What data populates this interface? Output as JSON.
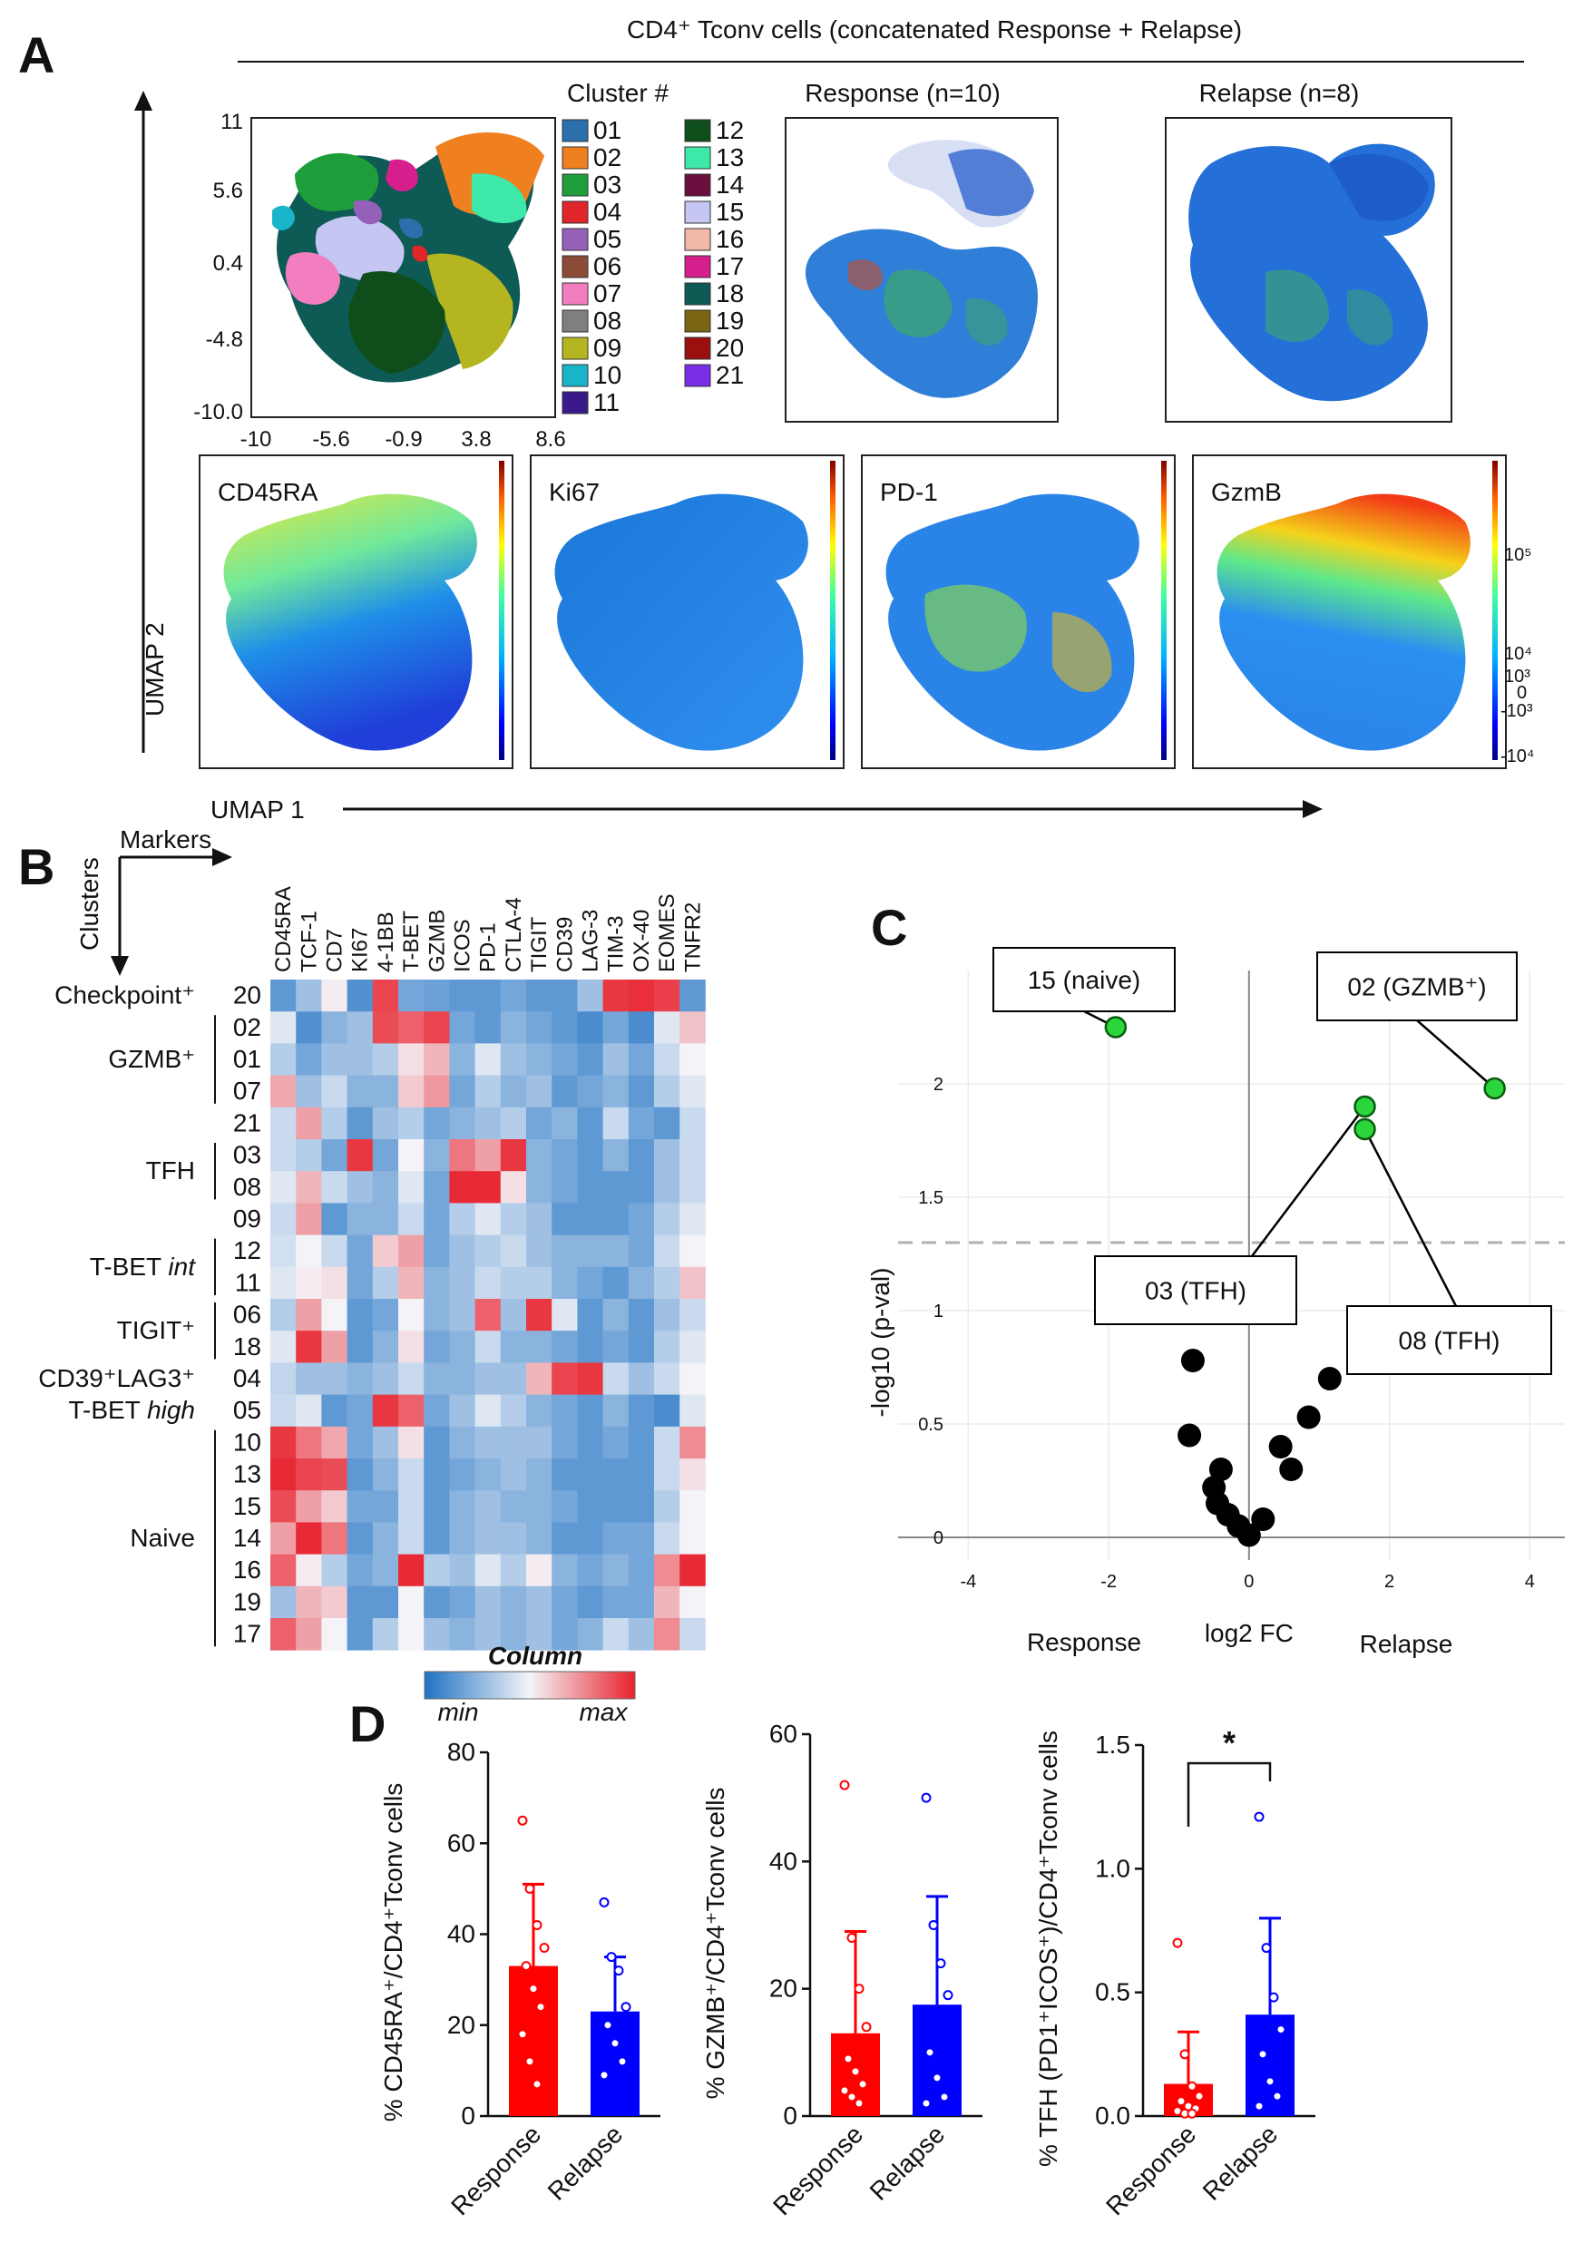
{
  "panel_labels": {
    "a": "A",
    "b": "B",
    "c": "C",
    "d": "D"
  },
  "panelA": {
    "title": "CD4⁺ Tconv cells  (concatenated Response + Relapse)",
    "axis_y": "UMAP 2",
    "axis_x": "UMAP 1",
    "cluster_title": "Cluster #",
    "cluster_yticks": [
      "11",
      "5.6",
      "0.4",
      "-4.8",
      "-10.0"
    ],
    "cluster_xticks": [
      "-10",
      "-5.6",
      "-0.9",
      "3.8",
      "8.6"
    ],
    "clusters": [
      {
        "id": "01",
        "color": "#2b6fad"
      },
      {
        "id": "02",
        "color": "#f07f1f"
      },
      {
        "id": "03",
        "color": "#1e9e3a"
      },
      {
        "id": "04",
        "color": "#e0262b"
      },
      {
        "id": "05",
        "color": "#9560b8"
      },
      {
        "id": "06",
        "color": "#8c4b36"
      },
      {
        "id": "07",
        "color": "#f27ec0"
      },
      {
        "id": "08",
        "color": "#7f7f7f"
      },
      {
        "id": "09",
        "color": "#b5b521"
      },
      {
        "id": "10",
        "color": "#18b4c9"
      },
      {
        "id": "11",
        "color": "#3a1a8a"
      },
      {
        "id": "12",
        "color": "#0f4d1a"
      },
      {
        "id": "13",
        "color": "#3de8a8"
      },
      {
        "id": "14",
        "color": "#6a0f3d"
      },
      {
        "id": "15",
        "color": "#c5c6f2"
      },
      {
        "id": "16",
        "color": "#f2b9a8"
      },
      {
        "id": "17",
        "color": "#d61f8c"
      },
      {
        "id": "18",
        "color": "#0e5a55"
      },
      {
        "id": "19",
        "color": "#7a6610"
      },
      {
        "id": "20",
        "color": "#9b0f0f"
      },
      {
        "id": "21",
        "color": "#7a2ee6"
      }
    ],
    "response_label": "Response  (n=10)",
    "relapse_label": "Relapse  (n=8)",
    "marker_plots": [
      "CD45RA",
      "Ki67",
      "PD-1",
      "GzmB"
    ],
    "scale_labels": [
      "10⁵",
      "10⁴",
      "10³",
      "0",
      "-10³",
      "-10⁴"
    ]
  },
  "panelB": {
    "axis_markers": "Markers",
    "axis_clusters": "Clusters",
    "markers": [
      "CD45RA",
      "TCF-1",
      "CD7",
      "KI67",
      "4-1BB",
      "T-BET",
      "GZMB",
      "ICOS",
      "PD-1",
      "CTLA-4",
      "TIGIT",
      "CD39",
      "LAG-3",
      "TIM-3",
      "OX-40",
      "EOMES",
      "TNFR2"
    ],
    "rows": [
      "20",
      "02",
      "01",
      "07",
      "21",
      "03",
      "08",
      "09",
      "12",
      "11",
      "06",
      "18",
      "04",
      "05",
      "10",
      "13",
      "15",
      "14",
      "16",
      "19",
      "17"
    ],
    "groups": [
      {
        "label": "Checkpoint⁺",
        "rows": [
          0,
          0
        ]
      },
      {
        "label": "GZMB⁺",
        "rows": [
          1,
          3
        ]
      },
      {
        "label": "TFH",
        "rows": [
          5,
          6
        ]
      },
      {
        "label": "T-BET int",
        "rows": [
          8,
          9
        ]
      },
      {
        "label": "TIGIT⁺",
        "rows": [
          10,
          11
        ]
      },
      {
        "label": "CD39⁺LAG3⁺",
        "rows": [
          12,
          12
        ]
      },
      {
        "label": "T-BET high",
        "rows": [
          13,
          13
        ]
      },
      {
        "label": "Naive",
        "rows": [
          14,
          20
        ]
      }
    ],
    "values": [
      [
        0.15,
        0.3,
        0.52,
        0.12,
        0.92,
        0.2,
        0.18,
        0.15,
        0.15,
        0.2,
        0.15,
        0.15,
        0.3,
        0.95,
        0.97,
        0.93,
        0.15
      ],
      [
        0.45,
        0.12,
        0.25,
        0.3,
        0.9,
        0.85,
        0.92,
        0.2,
        0.15,
        0.25,
        0.2,
        0.15,
        0.1,
        0.2,
        0.1,
        0.45,
        0.62
      ],
      [
        0.35,
        0.2,
        0.3,
        0.3,
        0.35,
        0.55,
        0.65,
        0.25,
        0.45,
        0.3,
        0.25,
        0.2,
        0.15,
        0.3,
        0.2,
        0.4,
        0.5
      ],
      [
        0.68,
        0.3,
        0.4,
        0.25,
        0.25,
        0.6,
        0.72,
        0.2,
        0.35,
        0.25,
        0.3,
        0.15,
        0.2,
        0.25,
        0.15,
        0.35,
        0.45
      ],
      [
        0.4,
        0.7,
        0.35,
        0.15,
        0.3,
        0.35,
        0.2,
        0.25,
        0.3,
        0.35,
        0.2,
        0.25,
        0.15,
        0.4,
        0.2,
        0.15,
        0.4
      ],
      [
        0.4,
        0.35,
        0.2,
        0.95,
        0.2,
        0.5,
        0.25,
        0.8,
        0.7,
        0.95,
        0.25,
        0.2,
        0.15,
        0.25,
        0.15,
        0.3,
        0.4
      ],
      [
        0.45,
        0.65,
        0.4,
        0.3,
        0.25,
        0.45,
        0.2,
        0.98,
        0.98,
        0.55,
        0.25,
        0.2,
        0.15,
        0.15,
        0.15,
        0.3,
        0.4
      ],
      [
        0.4,
        0.7,
        0.15,
        0.25,
        0.25,
        0.4,
        0.2,
        0.35,
        0.45,
        0.35,
        0.3,
        0.15,
        0.15,
        0.15,
        0.2,
        0.35,
        0.45
      ],
      [
        0.42,
        0.5,
        0.4,
        0.2,
        0.6,
        0.7,
        0.2,
        0.3,
        0.35,
        0.4,
        0.3,
        0.25,
        0.25,
        0.25,
        0.2,
        0.4,
        0.5
      ],
      [
        0.45,
        0.52,
        0.55,
        0.2,
        0.35,
        0.65,
        0.25,
        0.3,
        0.4,
        0.35,
        0.35,
        0.25,
        0.2,
        0.15,
        0.25,
        0.35,
        0.62
      ],
      [
        0.35,
        0.7,
        0.5,
        0.15,
        0.2,
        0.5,
        0.25,
        0.3,
        0.85,
        0.3,
        0.95,
        0.45,
        0.15,
        0.25,
        0.15,
        0.3,
        0.4
      ],
      [
        0.45,
        0.95,
        0.7,
        0.15,
        0.25,
        0.55,
        0.2,
        0.25,
        0.4,
        0.25,
        0.25,
        0.2,
        0.15,
        0.2,
        0.15,
        0.35,
        0.45
      ],
      [
        0.38,
        0.3,
        0.3,
        0.25,
        0.3,
        0.4,
        0.25,
        0.25,
        0.3,
        0.3,
        0.65,
        0.92,
        0.95,
        0.4,
        0.3,
        0.4,
        0.5
      ],
      [
        0.4,
        0.45,
        0.15,
        0.2,
        0.95,
        0.85,
        0.2,
        0.3,
        0.45,
        0.35,
        0.25,
        0.2,
        0.15,
        0.25,
        0.15,
        0.1,
        0.45
      ],
      [
        0.95,
        0.8,
        0.68,
        0.2,
        0.3,
        0.55,
        0.15,
        0.25,
        0.3,
        0.3,
        0.3,
        0.2,
        0.15,
        0.2,
        0.15,
        0.4,
        0.75
      ],
      [
        0.98,
        0.92,
        0.9,
        0.15,
        0.25,
        0.4,
        0.15,
        0.2,
        0.25,
        0.3,
        0.25,
        0.15,
        0.15,
        0.15,
        0.15,
        0.4,
        0.55
      ],
      [
        0.9,
        0.7,
        0.6,
        0.2,
        0.2,
        0.4,
        0.15,
        0.25,
        0.3,
        0.25,
        0.25,
        0.2,
        0.15,
        0.15,
        0.15,
        0.35,
        0.5
      ],
      [
        0.7,
        0.98,
        0.8,
        0.15,
        0.25,
        0.4,
        0.15,
        0.25,
        0.3,
        0.3,
        0.25,
        0.15,
        0.15,
        0.2,
        0.2,
        0.4,
        0.5
      ],
      [
        0.85,
        0.52,
        0.35,
        0.2,
        0.25,
        0.98,
        0.35,
        0.3,
        0.45,
        0.35,
        0.52,
        0.25,
        0.2,
        0.25,
        0.2,
        0.75,
        0.98
      ],
      [
        0.3,
        0.65,
        0.6,
        0.15,
        0.15,
        0.5,
        0.15,
        0.2,
        0.3,
        0.25,
        0.3,
        0.2,
        0.15,
        0.2,
        0.2,
        0.65,
        0.5
      ],
      [
        0.85,
        0.7,
        0.5,
        0.15,
        0.35,
        0.5,
        0.3,
        0.25,
        0.3,
        0.25,
        0.3,
        0.2,
        0.25,
        0.4,
        0.3,
        0.75,
        0.4
      ]
    ],
    "colorbar_title": "Column",
    "colorbar_min": "min",
    "colorbar_max": "max"
  },
  "chart_data": [
    {
      "type": "scatter",
      "title": "",
      "xlabel": "log2 FC",
      "ylabel": "-log10 (p-val)",
      "xlim": [
        -5,
        4.5
      ],
      "ylim": [
        -0.1,
        2.5
      ],
      "xticks": [
        -4,
        -2,
        0,
        2,
        4
      ],
      "yticks": [
        0,
        0.5,
        1,
        1.5,
        2
      ],
      "threshold": 1.3,
      "left_label": "Response",
      "right_label": "Relapse",
      "highlighted": [
        {
          "label": "15 (naive)",
          "x": -1.9,
          "y": 2.25
        },
        {
          "label": "02 (GZMB⁺)",
          "x": 3.5,
          "y": 1.98
        },
        {
          "label": "03 (TFH)",
          "x": 1.65,
          "y": 1.9
        },
        {
          "label": "08 (TFH)",
          "x": 1.65,
          "y": 1.8
        }
      ],
      "points": [
        {
          "x": -0.8,
          "y": 0.78
        },
        {
          "x": -0.85,
          "y": 0.45
        },
        {
          "x": -0.4,
          "y": 0.3
        },
        {
          "x": -0.5,
          "y": 0.22
        },
        {
          "x": -0.45,
          "y": 0.15
        },
        {
          "x": -0.3,
          "y": 0.1
        },
        {
          "x": -0.15,
          "y": 0.05
        },
        {
          "x": 0.0,
          "y": 0.01
        },
        {
          "x": 0.2,
          "y": 0.08
        },
        {
          "x": 0.45,
          "y": 0.4
        },
        {
          "x": 0.6,
          "y": 0.3
        },
        {
          "x": 0.85,
          "y": 0.53
        },
        {
          "x": 1.15,
          "y": 0.7
        }
      ]
    },
    {
      "type": "bar",
      "ylabel": "% CD45RA⁺/CD4⁺Tconv cells",
      "ylim": [
        0,
        80
      ],
      "yticks": [
        0,
        20,
        40,
        60,
        80
      ],
      "categories": [
        "Response",
        "Relapse"
      ],
      "values": [
        33,
        23
      ],
      "errors": [
        18,
        12
      ],
      "points": [
        [
          65,
          50,
          42,
          37,
          33,
          28,
          24,
          18,
          12,
          7
        ],
        [
          47,
          35,
          32,
          24,
          20,
          16,
          12,
          9
        ]
      ],
      "significance": ""
    },
    {
      "type": "bar",
      "ylabel": "% GZMB⁺/CD4⁺Tconv cells",
      "ylim": [
        0,
        60
      ],
      "yticks": [
        0,
        20,
        40,
        60
      ],
      "categories": [
        "Response",
        "Relapse"
      ],
      "values": [
        13,
        17.5
      ],
      "errors": [
        16,
        17
      ],
      "points": [
        [
          52,
          28,
          20,
          14,
          9,
          7,
          5,
          4,
          3,
          2
        ],
        [
          50,
          30,
          24,
          19,
          10,
          6,
          3,
          2
        ]
      ],
      "significance": ""
    },
    {
      "type": "bar",
      "ylabel": "% TFH (PD1⁺ICOS⁺)/CD4⁺Tconv cells",
      "ylim": [
        0,
        1.5
      ],
      "yticks": [
        0,
        0.5,
        1.0,
        1.5
      ],
      "ytick_labels": [
        "0.0",
        "0.5",
        "1.0",
        "1.5"
      ],
      "categories": [
        "Response",
        "Relapse"
      ],
      "values": [
        0.13,
        0.41
      ],
      "errors": [
        0.21,
        0.39
      ],
      "points": [
        [
          0.7,
          0.25,
          0.12,
          0.08,
          0.06,
          0.04,
          0.03,
          0.02,
          0.01,
          0.01
        ],
        [
          1.21,
          0.68,
          0.48,
          0.35,
          0.25,
          0.14,
          0.08,
          0.04
        ]
      ],
      "significance": "*"
    }
  ]
}
